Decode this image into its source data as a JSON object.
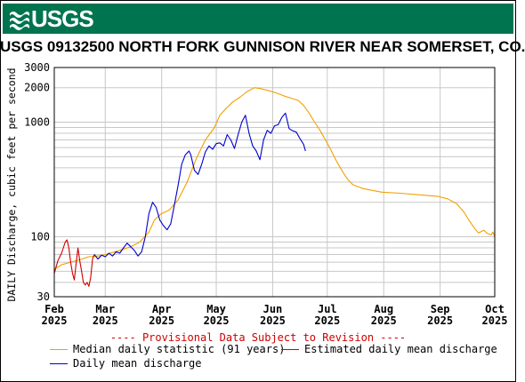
{
  "header": {
    "logo_text": "USGS",
    "color": "#00744f"
  },
  "chart_data": {
    "type": "line",
    "title": "USGS 09132500 NORTH FORK GUNNISON RIVER NEAR SOMERSET, CO.",
    "ylabel": "DAILY Discharge, cubic feet per second",
    "xlabel": "",
    "yscale": "log",
    "ylim": [
      30,
      3000
    ],
    "xlim": [
      "2025-02-01",
      "2025-10-01"
    ],
    "grid": true,
    "yticks": [
      30,
      100,
      1000,
      2000,
      3000
    ],
    "ytick_labels": [
      "30",
      "100",
      "1000",
      "2000",
      "3000"
    ],
    "xticks": [
      "2025-02-01",
      "2025-03-01",
      "2025-04-01",
      "2025-05-01",
      "2025-06-01",
      "2025-07-01",
      "2025-08-01",
      "2025-09-01",
      "2025-10-01"
    ],
    "xtick_labels": [
      [
        "Feb",
        "2025"
      ],
      [
        "Mar",
        "2025"
      ],
      [
        "Apr",
        "2025"
      ],
      [
        "May",
        "2025"
      ],
      [
        "Jun",
        "2025"
      ],
      [
        "Jul",
        "2025"
      ],
      [
        "Aug",
        "2025"
      ],
      [
        "Sep",
        "2025"
      ],
      [
        "Oct",
        "2025"
      ]
    ],
    "annotation": "---- Provisional Data Subject to Revision ----",
    "series": [
      {
        "name": "Median daily statistic (91 years)",
        "color": "#f0a000",
        "points": [
          [
            "2025-02-01",
            52
          ],
          [
            "2025-02-05",
            57
          ],
          [
            "2025-02-10",
            60
          ],
          [
            "2025-02-15",
            63
          ],
          [
            "2025-02-20",
            67
          ],
          [
            "2025-02-25",
            68
          ],
          [
            "2025-03-01",
            70
          ],
          [
            "2025-03-05",
            73
          ],
          [
            "2025-03-10",
            77
          ],
          [
            "2025-03-15",
            82
          ],
          [
            "2025-03-20",
            90
          ],
          [
            "2025-03-25",
            110
          ],
          [
            "2025-03-28",
            140
          ],
          [
            "2025-04-01",
            160
          ],
          [
            "2025-04-05",
            170
          ],
          [
            "2025-04-10",
            210
          ],
          [
            "2025-04-15",
            300
          ],
          [
            "2025-04-20",
            480
          ],
          [
            "2025-04-25",
            700
          ],
          [
            "2025-04-30",
            900
          ],
          [
            "2025-05-03",
            1150
          ],
          [
            "2025-05-06",
            1300
          ],
          [
            "2025-05-10",
            1500
          ],
          [
            "2025-05-14",
            1650
          ],
          [
            "2025-05-18",
            1850
          ],
          [
            "2025-05-22",
            2000
          ],
          [
            "2025-05-26",
            1950
          ],
          [
            "2025-05-30",
            1880
          ],
          [
            "2025-06-03",
            1800
          ],
          [
            "2025-06-07",
            1700
          ],
          [
            "2025-06-11",
            1620
          ],
          [
            "2025-06-15",
            1550
          ],
          [
            "2025-06-18",
            1400
          ],
          [
            "2025-06-21",
            1200
          ],
          [
            "2025-06-24",
            1000
          ],
          [
            "2025-06-27",
            850
          ],
          [
            "2025-06-30",
            700
          ],
          [
            "2025-07-03",
            570
          ],
          [
            "2025-07-06",
            460
          ],
          [
            "2025-07-09",
            380
          ],
          [
            "2025-07-12",
            320
          ],
          [
            "2025-07-15",
            285
          ],
          [
            "2025-07-20",
            265
          ],
          [
            "2025-07-25",
            255
          ],
          [
            "2025-07-31",
            245
          ],
          [
            "2025-08-10",
            240
          ],
          [
            "2025-08-20",
            233
          ],
          [
            "2025-08-31",
            225
          ],
          [
            "2025-09-05",
            215
          ],
          [
            "2025-09-10",
            195
          ],
          [
            "2025-09-14",
            165
          ],
          [
            "2025-09-17",
            138
          ],
          [
            "2025-09-20",
            118
          ],
          [
            "2025-09-22",
            108
          ],
          [
            "2025-09-25",
            114
          ],
          [
            "2025-09-27",
            107
          ],
          [
            "2025-09-29",
            104
          ],
          [
            "2025-09-30",
            110
          ],
          [
            "2025-10-01",
            100
          ]
        ]
      },
      {
        "name": "Estimated daily mean discharge",
        "color": "#d00000",
        "points": [
          [
            "2025-02-01",
            48
          ],
          [
            "2025-02-03",
            62
          ],
          [
            "2025-02-05",
            72
          ],
          [
            "2025-02-07",
            90
          ],
          [
            "2025-02-08",
            94
          ],
          [
            "2025-02-09",
            80
          ],
          [
            "2025-02-10",
            60
          ],
          [
            "2025-02-11",
            48
          ],
          [
            "2025-02-12",
            42
          ],
          [
            "2025-02-13",
            58
          ],
          [
            "2025-02-14",
            80
          ],
          [
            "2025-02-15",
            62
          ],
          [
            "2025-02-16",
            50
          ],
          [
            "2025-02-17",
            40
          ],
          [
            "2025-02-18",
            38
          ],
          [
            "2025-02-19",
            40
          ],
          [
            "2025-02-20",
            37
          ],
          [
            "2025-02-21",
            44
          ],
          [
            "2025-02-22",
            64
          ],
          [
            "2025-02-23",
            70
          ]
        ]
      },
      {
        "name": "Daily mean discharge",
        "color": "#0000cc",
        "points": [
          [
            "2025-02-23",
            70
          ],
          [
            "2025-02-25",
            64
          ],
          [
            "2025-02-27",
            69
          ],
          [
            "2025-03-01",
            67
          ],
          [
            "2025-03-03",
            72
          ],
          [
            "2025-03-05",
            68
          ],
          [
            "2025-03-07",
            74
          ],
          [
            "2025-03-09",
            72
          ],
          [
            "2025-03-11",
            80
          ],
          [
            "2025-03-13",
            88
          ],
          [
            "2025-03-15",
            82
          ],
          [
            "2025-03-17",
            76
          ],
          [
            "2025-03-19",
            68
          ],
          [
            "2025-03-21",
            74
          ],
          [
            "2025-03-23",
            100
          ],
          [
            "2025-03-25",
            160
          ],
          [
            "2025-03-27",
            200
          ],
          [
            "2025-03-29",
            180
          ],
          [
            "2025-03-31",
            140
          ],
          [
            "2025-04-02",
            125
          ],
          [
            "2025-04-04",
            115
          ],
          [
            "2025-04-06",
            130
          ],
          [
            "2025-04-08",
            190
          ],
          [
            "2025-04-10",
            280
          ],
          [
            "2025-04-12",
            430
          ],
          [
            "2025-04-14",
            520
          ],
          [
            "2025-04-16",
            560
          ],
          [
            "2025-04-17",
            520
          ],
          [
            "2025-04-19",
            380
          ],
          [
            "2025-04-21",
            350
          ],
          [
            "2025-04-23",
            430
          ],
          [
            "2025-04-25",
            550
          ],
          [
            "2025-04-27",
            620
          ],
          [
            "2025-04-29",
            580
          ],
          [
            "2025-05-01",
            650
          ],
          [
            "2025-05-03",
            660
          ],
          [
            "2025-05-05",
            620
          ],
          [
            "2025-05-07",
            780
          ],
          [
            "2025-05-09",
            700
          ],
          [
            "2025-05-11",
            590
          ],
          [
            "2025-05-13",
            780
          ],
          [
            "2025-05-15",
            1000
          ],
          [
            "2025-05-17",
            1150
          ],
          [
            "2025-05-19",
            800
          ],
          [
            "2025-05-21",
            620
          ],
          [
            "2025-05-23",
            560
          ],
          [
            "2025-05-25",
            470
          ],
          [
            "2025-05-27",
            700
          ],
          [
            "2025-05-29",
            850
          ],
          [
            "2025-05-31",
            800
          ],
          [
            "2025-06-02",
            930
          ],
          [
            "2025-06-04",
            950
          ],
          [
            "2025-06-06",
            1100
          ],
          [
            "2025-06-08",
            1200
          ],
          [
            "2025-06-10",
            880
          ],
          [
            "2025-06-12",
            840
          ],
          [
            "2025-06-14",
            820
          ],
          [
            "2025-06-16",
            720
          ],
          [
            "2025-06-18",
            640
          ],
          [
            "2025-06-19",
            560
          ]
        ]
      }
    ]
  },
  "legend": {
    "items": [
      {
        "label": "Median daily statistic (91 years)",
        "color": "#f0a000"
      },
      {
        "label": "Estimated daily mean discharge",
        "color": "#d00000"
      },
      {
        "label": "Daily mean discharge",
        "color": "#0000cc"
      }
    ]
  }
}
